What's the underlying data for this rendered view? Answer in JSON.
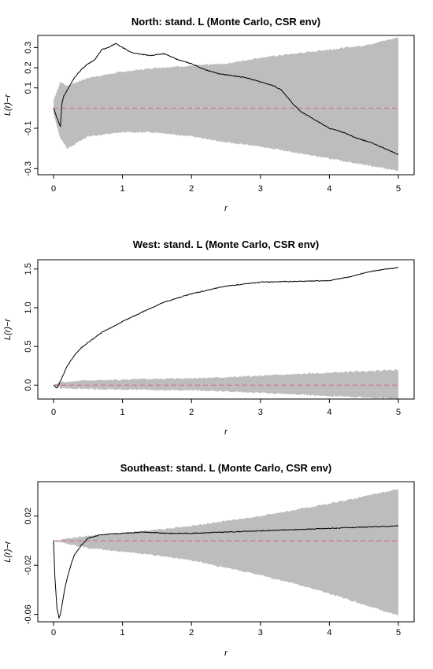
{
  "colors": {
    "envelope": "#bdbdbd",
    "observed": "#000000",
    "theoretical": "#d9627a",
    "axis": "#000000"
  },
  "chart_data": [
    {
      "type": "line",
      "title": "North: stand. L (Monte Carlo, CSR env)",
      "xlabel": "r",
      "ylabel": "L(r)−r",
      "xlim": [
        0,
        5
      ],
      "ylim": [
        -0.33,
        0.36
      ],
      "xticks": [
        "0",
        "1",
        "2",
        "3",
        "4",
        "5"
      ],
      "yticks": [
        {
          "label": "-0.3",
          "value": -0.3
        },
        {
          "label": "-0.1",
          "value": -0.1
        },
        {
          "label": "0.1",
          "value": 0.1
        },
        {
          "label": "0.2",
          "value": 0.2
        },
        {
          "label": "0.3",
          "value": 0.3
        }
      ],
      "theoretical": 0,
      "grid": false,
      "legend": "none",
      "series": [
        {
          "role": "observed",
          "x": [
            0,
            0.05,
            0.1,
            0.12,
            0.15,
            0.2,
            0.3,
            0.4,
            0.5,
            0.6,
            0.7,
            0.8,
            0.9,
            1.0,
            1.1,
            1.2,
            1.4,
            1.6,
            1.8,
            2.0,
            2.2,
            2.4,
            2.6,
            2.8,
            3.0,
            3.2,
            3.3,
            3.4,
            3.5,
            3.6,
            3.7,
            3.8,
            3.9,
            4.0,
            4.2,
            4.4,
            4.6,
            4.8,
            5.0
          ],
          "y": [
            0.0,
            -0.05,
            -0.09,
            0.02,
            0.06,
            0.09,
            0.15,
            0.19,
            0.22,
            0.24,
            0.29,
            0.3,
            0.32,
            0.3,
            0.28,
            0.27,
            0.26,
            0.27,
            0.24,
            0.22,
            0.19,
            0.17,
            0.16,
            0.15,
            0.13,
            0.11,
            0.09,
            0.05,
            0.01,
            -0.02,
            -0.04,
            -0.06,
            -0.08,
            -0.1,
            -0.12,
            -0.15,
            -0.17,
            -0.2,
            -0.23
          ]
        },
        {
          "role": "envelope",
          "x": [
            0,
            0.1,
            0.2,
            0.5,
            1.0,
            1.5,
            2.0,
            2.5,
            3.0,
            3.5,
            4.0,
            4.5,
            5.0
          ],
          "upper": [
            0.04,
            0.13,
            0.11,
            0.15,
            0.18,
            0.2,
            0.21,
            0.22,
            0.25,
            0.27,
            0.29,
            0.31,
            0.35
          ],
          "lower": [
            -0.03,
            -0.15,
            -0.2,
            -0.14,
            -0.12,
            -0.12,
            -0.14,
            -0.17,
            -0.19,
            -0.22,
            -0.25,
            -0.28,
            -0.31
          ]
        }
      ]
    },
    {
      "type": "line",
      "title": "West: stand. L (Monte Carlo, CSR env)",
      "xlabel": "r",
      "ylabel": "L(r)−r",
      "xlim": [
        0,
        5
      ],
      "ylim": [
        -0.18,
        1.62
      ],
      "xticks": [
        "0",
        "1",
        "2",
        "3",
        "4",
        "5"
      ],
      "yticks": [
        {
          "label": "0.0",
          "value": 0
        },
        {
          "label": "0.5",
          "value": 0.5
        },
        {
          "label": "1.0",
          "value": 1.0
        },
        {
          "label": "1.5",
          "value": 1.5
        }
      ],
      "theoretical": 0,
      "grid": false,
      "legend": "none",
      "series": [
        {
          "role": "observed",
          "x": [
            0,
            0.05,
            0.1,
            0.15,
            0.2,
            0.3,
            0.4,
            0.5,
            0.7,
            1.0,
            1.3,
            1.6,
            2.0,
            2.5,
            3.0,
            3.5,
            4.0,
            4.3,
            4.6,
            5.0
          ],
          "y": [
            0.0,
            -0.04,
            0.05,
            0.15,
            0.25,
            0.38,
            0.48,
            0.55,
            0.68,
            0.82,
            0.95,
            1.07,
            1.18,
            1.28,
            1.33,
            1.34,
            1.35,
            1.4,
            1.47,
            1.52
          ]
        },
        {
          "role": "envelope",
          "x": [
            0,
            0.1,
            0.5,
            1.0,
            1.5,
            2.0,
            2.5,
            3.0,
            3.5,
            4.0,
            4.5,
            5.0
          ],
          "upper": [
            0.0,
            0.04,
            0.06,
            0.07,
            0.08,
            0.09,
            0.1,
            0.12,
            0.14,
            0.16,
            0.18,
            0.2
          ],
          "lower": [
            0.0,
            -0.04,
            -0.05,
            -0.06,
            -0.06,
            -0.07,
            -0.08,
            -0.1,
            -0.12,
            -0.14,
            -0.16,
            -0.18
          ]
        }
      ]
    },
    {
      "type": "line",
      "title": "Southeast: stand. L (Monte Carlo, CSR env)",
      "xlabel": "r",
      "ylabel": "L(r)−r",
      "xlim": [
        0,
        5
      ],
      "ylim": [
        -0.066,
        0.048
      ],
      "xticks": [
        "0",
        "1",
        "2",
        "3",
        "4",
        "5"
      ],
      "yticks": [
        {
          "label": "-0.06",
          "value": -0.06
        },
        {
          "label": "-0.02",
          "value": -0.02
        },
        {
          "label": "0.02",
          "value": 0.02
        }
      ],
      "theoretical": 0,
      "grid": false,
      "legend": "none",
      "series": [
        {
          "role": "observed",
          "x": [
            0,
            0.02,
            0.05,
            0.08,
            0.1,
            0.13,
            0.16,
            0.2,
            0.25,
            0.3,
            0.4,
            0.5,
            0.7,
            1.0,
            1.3,
            1.6,
            2.0,
            2.5,
            3.0,
            3.5,
            4.0,
            4.5,
            5.0
          ],
          "y": [
            0.0,
            -0.03,
            -0.055,
            -0.063,
            -0.06,
            -0.05,
            -0.04,
            -0.03,
            -0.02,
            -0.012,
            -0.004,
            0.002,
            0.005,
            0.006,
            0.007,
            0.006,
            0.006,
            0.007,
            0.008,
            0.009,
            0.01,
            0.011,
            0.012
          ]
        },
        {
          "role": "envelope",
          "x": [
            0,
            0.5,
            1.0,
            1.5,
            2.0,
            2.5,
            3.0,
            3.5,
            4.0,
            4.5,
            5.0
          ],
          "upper": [
            0.0,
            0.004,
            0.006,
            0.009,
            0.012,
            0.016,
            0.02,
            0.025,
            0.03,
            0.036,
            0.042
          ],
          "lower": [
            0.0,
            -0.006,
            -0.009,
            -0.012,
            -0.016,
            -0.022,
            -0.028,
            -0.035,
            -0.043,
            -0.052,
            -0.061
          ]
        }
      ]
    }
  ]
}
